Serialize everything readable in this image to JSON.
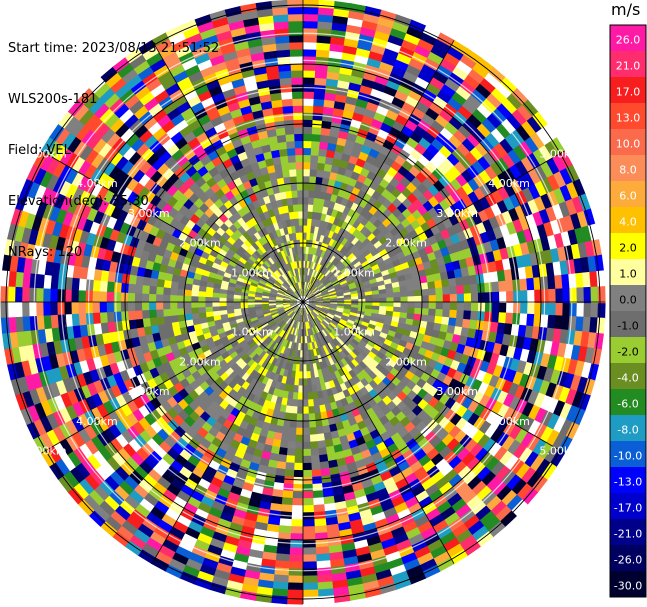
{
  "header": {
    "start_time": "Start time: 2023/08/13 21:51:52",
    "instrument": "WLS200s-181",
    "field": "Field: VEL",
    "elevation": "Elevation(deg): 35.30",
    "nrays": "NRays: 120"
  },
  "chart_data": {
    "type": "heatmap",
    "projection": "polar-ppi",
    "field": "VEL",
    "elevation_deg": 35.3,
    "n_rays": 120,
    "range_ring_labels": [
      "1.00km",
      "2.00km",
      "3.00km",
      "4.00km",
      "5.00km"
    ],
    "colorbar": {
      "unit": "m/s",
      "tick_labels": [
        "26.0",
        "21.0",
        "17.0",
        "13.0",
        "10.0",
        "8.0",
        "6.0",
        "4.0",
        "2.0",
        "1.0",
        "0.0",
        "-1.0",
        "-2.0",
        "-4.0",
        "-6.0",
        "-8.0",
        "-10.0",
        "-13.0",
        "-17.0",
        "-21.0",
        "-26.0",
        "-30.0"
      ],
      "colors": [
        "#ff1aa6",
        "#ff2d6d",
        "#f81e1e",
        "#ff4a2e",
        "#fb6a4a",
        "#fc8d59",
        "#fdab3a",
        "#ffc000",
        "#ffff00",
        "#ffffa0",
        "#808080",
        "#6e6e6e",
        "#9acd32",
        "#6b8e23",
        "#228b22",
        "#1f9cc4",
        "#0a5fd6",
        "#0000ff",
        "#0000cd",
        "#00008b",
        "#000060",
        "#000030"
      ]
    }
  }
}
